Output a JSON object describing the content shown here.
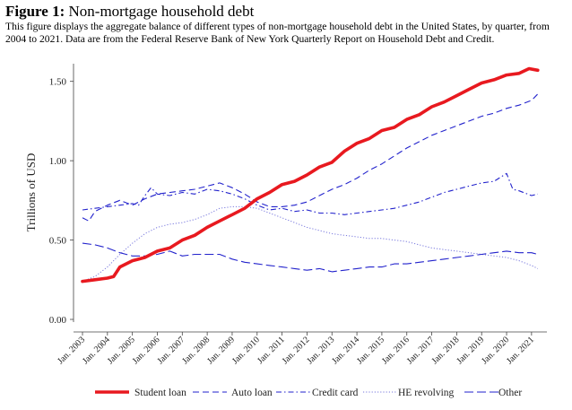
{
  "figure": {
    "label": "Figure 1:",
    "title": "Non-mortgage household debt",
    "caption": "This figure displays the aggregate balance of different types of non-mortgage household debt in the United States, by quarter, from 2004 to 2021. Data are from the Federal Reserve Bank of New York Quarterly Report on Household Debt and Credit."
  },
  "chart_data": {
    "type": "line",
    "title": "Non-mortgage household debt",
    "xlabel": "",
    "ylabel": "Trillions of USD",
    "xlim": [
      2003,
      2021.4
    ],
    "ylim": [
      0,
      1.6
    ],
    "yticks": [
      0.0,
      0.5,
      1.0,
      1.5
    ],
    "ytick_labels": [
      "0.00",
      "0.50",
      "1.00",
      "1.50"
    ],
    "xticks": [
      2003,
      2004,
      2005,
      2006,
      2007,
      2008,
      2009,
      2010,
      2011,
      2012,
      2013,
      2014,
      2015,
      2016,
      2017,
      2018,
      2019,
      2020,
      2021
    ],
    "xtick_labels": [
      "Jan. 2003",
      "Jan. 2004",
      "Jan. 2005",
      "Jan. 2006",
      "Jan. 2007",
      "Jan. 2008",
      "Jan. 2009",
      "Jan. 2010",
      "Jan. 2011",
      "Jan. 2012",
      "Jan. 2013",
      "Jan. 2014",
      "Jan. 2015",
      "Jan. 2016",
      "Jan. 2017",
      "Jan. 2018",
      "Jan. 2019",
      "Jan. 2020",
      "Jan. 2021"
    ],
    "grid": false,
    "legend_position": "bottom",
    "series": [
      {
        "name": "Student loan",
        "color": "#e8191f",
        "style": "solid-thick",
        "points": [
          [
            2003,
            0.24
          ],
          [
            2003.5,
            0.25
          ],
          [
            2004,
            0.26
          ],
          [
            2004.25,
            0.27
          ],
          [
            2004.5,
            0.33
          ],
          [
            2005,
            0.37
          ],
          [
            2005.5,
            0.39
          ],
          [
            2006,
            0.43
          ],
          [
            2006.5,
            0.45
          ],
          [
            2007,
            0.5
          ],
          [
            2007.5,
            0.53
          ],
          [
            2008,
            0.58
          ],
          [
            2008.5,
            0.62
          ],
          [
            2009,
            0.66
          ],
          [
            2009.5,
            0.7
          ],
          [
            2010,
            0.76
          ],
          [
            2010.5,
            0.8
          ],
          [
            2011,
            0.85
          ],
          [
            2011.5,
            0.87
          ],
          [
            2012,
            0.91
          ],
          [
            2012.5,
            0.96
          ],
          [
            2013,
            0.99
          ],
          [
            2013.5,
            1.06
          ],
          [
            2014,
            1.11
          ],
          [
            2014.5,
            1.14
          ],
          [
            2015,
            1.19
          ],
          [
            2015.5,
            1.21
          ],
          [
            2016,
            1.26
          ],
          [
            2016.5,
            1.29
          ],
          [
            2017,
            1.34
          ],
          [
            2017.5,
            1.37
          ],
          [
            2018,
            1.41
          ],
          [
            2018.5,
            1.45
          ],
          [
            2019,
            1.49
          ],
          [
            2019.5,
            1.51
          ],
          [
            2020,
            1.54
          ],
          [
            2020.5,
            1.55
          ],
          [
            2020.9,
            1.58
          ],
          [
            2021.25,
            1.57
          ]
        ]
      },
      {
        "name": "Auto loan",
        "color": "#2222cc",
        "style": "dashed",
        "points": [
          [
            2003,
            0.64
          ],
          [
            2003.25,
            0.62
          ],
          [
            2003.5,
            0.68
          ],
          [
            2004,
            0.72
          ],
          [
            2004.5,
            0.75
          ],
          [
            2005,
            0.72
          ],
          [
            2005.5,
            0.76
          ],
          [
            2006,
            0.79
          ],
          [
            2006.5,
            0.8
          ],
          [
            2007,
            0.81
          ],
          [
            2007.5,
            0.82
          ],
          [
            2008,
            0.84
          ],
          [
            2008.5,
            0.86
          ],
          [
            2009,
            0.83
          ],
          [
            2009.5,
            0.79
          ],
          [
            2010,
            0.74
          ],
          [
            2010.5,
            0.71
          ],
          [
            2011,
            0.71
          ],
          [
            2011.5,
            0.72
          ],
          [
            2012,
            0.74
          ],
          [
            2012.5,
            0.78
          ],
          [
            2013,
            0.82
          ],
          [
            2013.5,
            0.85
          ],
          [
            2014,
            0.89
          ],
          [
            2014.5,
            0.94
          ],
          [
            2015,
            0.98
          ],
          [
            2015.5,
            1.03
          ],
          [
            2016,
            1.08
          ],
          [
            2016.5,
            1.12
          ],
          [
            2017,
            1.16
          ],
          [
            2017.5,
            1.19
          ],
          [
            2018,
            1.22
          ],
          [
            2018.5,
            1.25
          ],
          [
            2019,
            1.28
          ],
          [
            2019.5,
            1.3
          ],
          [
            2020,
            1.33
          ],
          [
            2020.5,
            1.35
          ],
          [
            2021,
            1.38
          ],
          [
            2021.25,
            1.42
          ]
        ]
      },
      {
        "name": "Credit card",
        "color": "#2222cc",
        "style": "dashdot",
        "points": [
          [
            2003,
            0.69
          ],
          [
            2003.5,
            0.7
          ],
          [
            2004,
            0.71
          ],
          [
            2004.5,
            0.72
          ],
          [
            2005,
            0.73
          ],
          [
            2005.25,
            0.72
          ],
          [
            2005.5,
            0.78
          ],
          [
            2005.75,
            0.83
          ],
          [
            2006,
            0.79
          ],
          [
            2006.5,
            0.78
          ],
          [
            2007,
            0.8
          ],
          [
            2007.5,
            0.79
          ],
          [
            2008,
            0.82
          ],
          [
            2008.5,
            0.81
          ],
          [
            2009,
            0.79
          ],
          [
            2009.5,
            0.76
          ],
          [
            2010,
            0.72
          ],
          [
            2010.5,
            0.69
          ],
          [
            2011,
            0.7
          ],
          [
            2011.5,
            0.68
          ],
          [
            2012,
            0.69
          ],
          [
            2012.5,
            0.67
          ],
          [
            2013,
            0.67
          ],
          [
            2013.5,
            0.66
          ],
          [
            2014,
            0.67
          ],
          [
            2014.5,
            0.68
          ],
          [
            2015,
            0.69
          ],
          [
            2015.5,
            0.7
          ],
          [
            2016,
            0.72
          ],
          [
            2016.5,
            0.74
          ],
          [
            2017,
            0.77
          ],
          [
            2017.5,
            0.8
          ],
          [
            2018,
            0.82
          ],
          [
            2018.5,
            0.84
          ],
          [
            2019,
            0.86
          ],
          [
            2019.5,
            0.87
          ],
          [
            2020,
            0.92
          ],
          [
            2020.25,
            0.82
          ],
          [
            2020.5,
            0.81
          ],
          [
            2021,
            0.78
          ],
          [
            2021.25,
            0.79
          ]
        ]
      },
      {
        "name": "HE revolving",
        "color": "#7777dd",
        "style": "dotted",
        "points": [
          [
            2003,
            0.24
          ],
          [
            2003.5,
            0.27
          ],
          [
            2004,
            0.33
          ],
          [
            2004.5,
            0.41
          ],
          [
            2005,
            0.48
          ],
          [
            2005.5,
            0.54
          ],
          [
            2006,
            0.58
          ],
          [
            2006.5,
            0.6
          ],
          [
            2007,
            0.61
          ],
          [
            2007.5,
            0.63
          ],
          [
            2008,
            0.66
          ],
          [
            2008.5,
            0.7
          ],
          [
            2009,
            0.71
          ],
          [
            2009.5,
            0.71
          ],
          [
            2010,
            0.7
          ],
          [
            2010.5,
            0.67
          ],
          [
            2011,
            0.64
          ],
          [
            2011.5,
            0.61
          ],
          [
            2012,
            0.58
          ],
          [
            2012.5,
            0.56
          ],
          [
            2013,
            0.54
          ],
          [
            2013.5,
            0.53
          ],
          [
            2014,
            0.52
          ],
          [
            2014.5,
            0.51
          ],
          [
            2015,
            0.51
          ],
          [
            2015.5,
            0.5
          ],
          [
            2016,
            0.49
          ],
          [
            2016.5,
            0.47
          ],
          [
            2017,
            0.45
          ],
          [
            2017.5,
            0.44
          ],
          [
            2018,
            0.43
          ],
          [
            2018.5,
            0.42
          ],
          [
            2019,
            0.41
          ],
          [
            2019.5,
            0.4
          ],
          [
            2020,
            0.39
          ],
          [
            2020.5,
            0.37
          ],
          [
            2021,
            0.34
          ],
          [
            2021.25,
            0.32
          ]
        ]
      },
      {
        "name": "Other",
        "color": "#2222cc",
        "style": "longdash",
        "points": [
          [
            2003,
            0.48
          ],
          [
            2003.5,
            0.47
          ],
          [
            2004,
            0.45
          ],
          [
            2004.5,
            0.42
          ],
          [
            2005,
            0.4
          ],
          [
            2005.5,
            0.4
          ],
          [
            2006,
            0.41
          ],
          [
            2006.5,
            0.43
          ],
          [
            2007,
            0.4
          ],
          [
            2007.5,
            0.41
          ],
          [
            2008,
            0.41
          ],
          [
            2008.5,
            0.41
          ],
          [
            2009,
            0.38
          ],
          [
            2009.5,
            0.36
          ],
          [
            2010,
            0.35
          ],
          [
            2010.5,
            0.34
          ],
          [
            2011,
            0.33
          ],
          [
            2011.5,
            0.32
          ],
          [
            2012,
            0.31
          ],
          [
            2012.5,
            0.32
          ],
          [
            2013,
            0.3
          ],
          [
            2013.5,
            0.31
          ],
          [
            2014,
            0.32
          ],
          [
            2014.5,
            0.33
          ],
          [
            2015,
            0.33
          ],
          [
            2015.5,
            0.35
          ],
          [
            2016,
            0.35
          ],
          [
            2016.5,
            0.36
          ],
          [
            2017,
            0.37
          ],
          [
            2017.5,
            0.38
          ],
          [
            2018,
            0.39
          ],
          [
            2018.5,
            0.4
          ],
          [
            2019,
            0.41
          ],
          [
            2019.5,
            0.42
          ],
          [
            2020,
            0.43
          ],
          [
            2020.5,
            0.42
          ],
          [
            2021,
            0.42
          ],
          [
            2021.25,
            0.41
          ]
        ]
      }
    ]
  }
}
